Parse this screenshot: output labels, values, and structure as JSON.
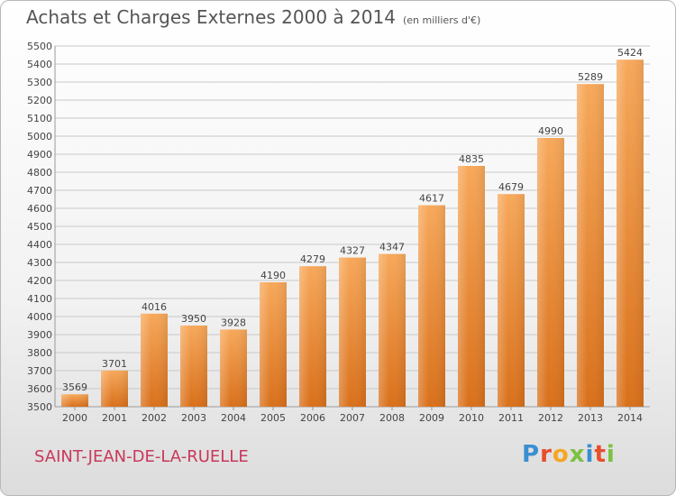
{
  "header": {
    "title": "Achats et Charges Externes 2000 à 2014",
    "subtitle": "(en milliers d'€)"
  },
  "footer": {
    "city": "SAINT-JEAN-DE-LA-RUELLE",
    "logo_letters": [
      "P",
      "r",
      "o",
      "x",
      "i",
      "t",
      "i"
    ],
    "logo_colors": [
      "#3a8fd0",
      "#e84e2c",
      "#f5a623",
      "#7cc142",
      "#3a8fd0",
      "#e84e2c",
      "#7cc142"
    ]
  },
  "chart_data": {
    "type": "bar",
    "categories": [
      "2000",
      "2001",
      "2002",
      "2003",
      "2004",
      "2005",
      "2006",
      "2007",
      "2008",
      "2009",
      "2010",
      "2011",
      "2012",
      "2013",
      "2014"
    ],
    "values": [
      3569,
      3701,
      4016,
      3950,
      3928,
      4190,
      4279,
      4327,
      4347,
      4617,
      4835,
      4679,
      4990,
      5289,
      5424
    ],
    "ylim": [
      3500,
      5500
    ],
    "ytick_step": 100,
    "grid": true,
    "bar_color": "#f08a2a",
    "legend": "none"
  }
}
